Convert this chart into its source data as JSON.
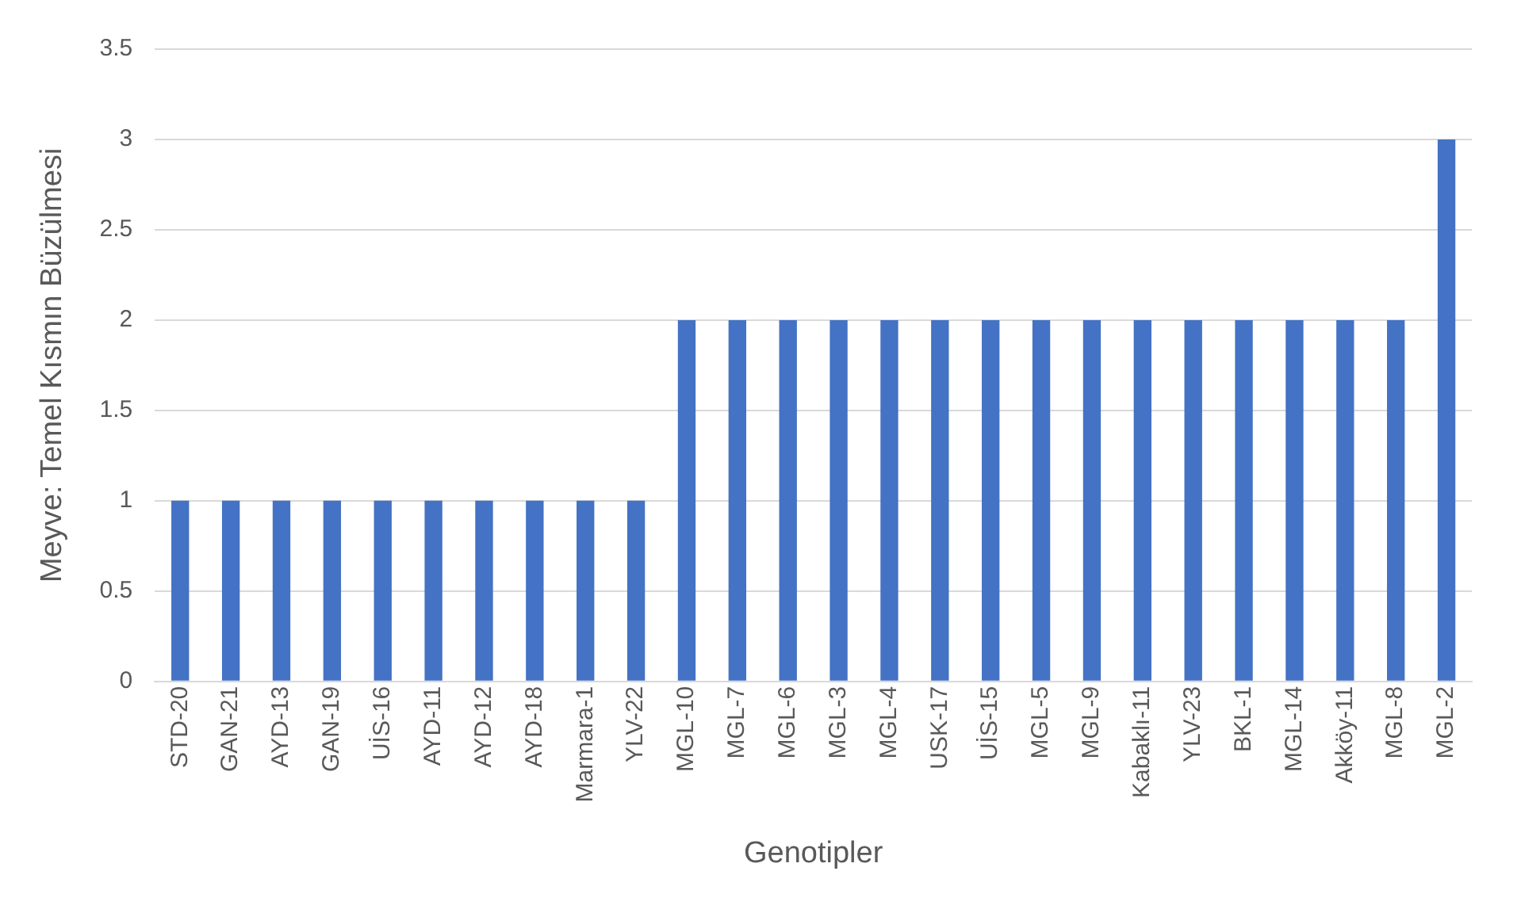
{
  "chart_data": {
    "type": "bar",
    "xlabel": "Genotipler",
    "ylabel": "Meyve: Temel Kısmın Büzülmesi",
    "categories": [
      "STD-20",
      "GAN-21",
      "AYD-13",
      "GAN-19",
      "UİS-16",
      "AYD-11",
      "AYD-12",
      "AYD-18",
      "Marmara-1",
      "YLV-22",
      "MGL-10",
      "MGL-7",
      "MGL-6",
      "MGL-3",
      "MGL-4",
      "USK-17",
      "UİS-15",
      "MGL-5",
      "MGL-9",
      "Kabaklı-11",
      "YLV-23",
      "BKL-1",
      "MGL-14",
      "Akköy-11",
      "MGL-8",
      "MGL-2"
    ],
    "values": [
      1,
      1,
      1,
      1,
      1,
      1,
      1,
      1,
      1,
      1,
      2,
      2,
      2,
      2,
      2,
      2,
      2,
      2,
      2,
      2,
      2,
      2,
      2,
      2,
      2,
      3
    ],
    "color": "#4472c4",
    "ylim": [
      0,
      3.5
    ],
    "yticks": [
      0,
      0.5,
      1,
      1.5,
      2,
      2.5,
      3,
      3.5
    ],
    "grid": "y",
    "legend": false
  }
}
